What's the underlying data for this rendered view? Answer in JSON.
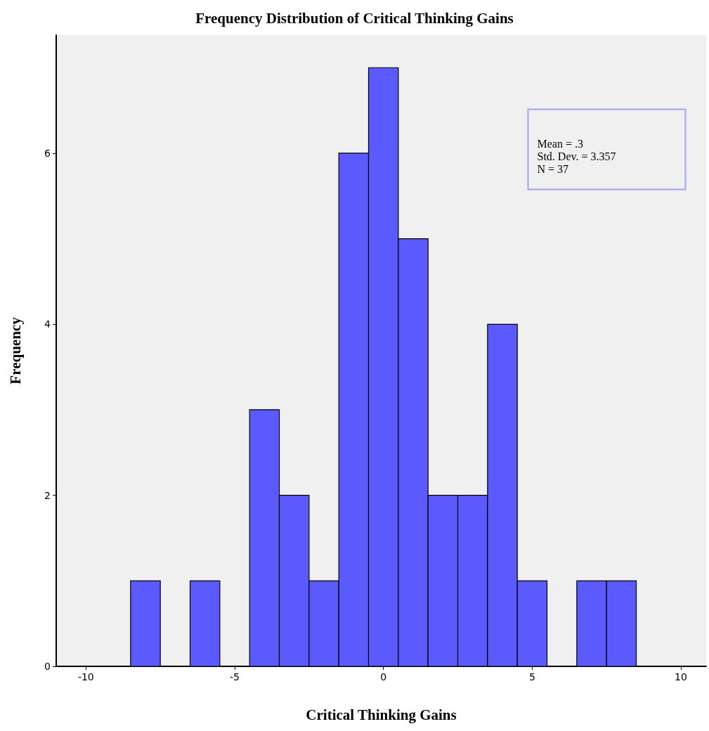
{
  "chart_data": {
    "type": "histogram",
    "title": "Frequency Distribution of Critical Thinking Gains",
    "xlabel": "Critical Thinking Gains",
    "ylabel": "Frequency",
    "bins": [
      -8.5,
      -7.5,
      -6.5,
      -5.5,
      -4.5,
      -3.5,
      -2.5,
      -1.5,
      -0.5,
      0.5,
      1.5,
      2.5,
      3.5,
      4.5,
      5.5,
      6.5,
      7.5,
      8.5
    ],
    "values": [
      1,
      0,
      1,
      0,
      3,
      2,
      1,
      6,
      7,
      5,
      2,
      2,
      4,
      1,
      0,
      1,
      1
    ],
    "color": "#5a5aff",
    "xlim": [
      -11,
      10.85
    ],
    "xticks": [
      -10,
      -5,
      0,
      5,
      10
    ],
    "ylim": [
      0,
      7.38
    ],
    "yticks": [
      0,
      2,
      4,
      6
    ],
    "grid": false,
    "annotations": [
      "Mean = .3",
      "Std. Dev. = 3.357",
      "N = 37"
    ]
  }
}
